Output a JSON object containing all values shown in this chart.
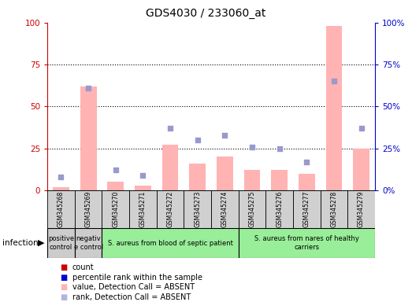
{
  "title": "GDS4030 / 233060_at",
  "samples": [
    "GSM345268",
    "GSM345269",
    "GSM345270",
    "GSM345271",
    "GSM345272",
    "GSM345273",
    "GSM345274",
    "GSM345275",
    "GSM345276",
    "GSM345277",
    "GSM345278",
    "GSM345279"
  ],
  "bar_values_pink": [
    2,
    62,
    5,
    3,
    27,
    16,
    20,
    12,
    12,
    10,
    98,
    25
  ],
  "dot_values_blue": [
    8,
    61,
    12,
    9,
    37,
    30,
    33,
    26,
    25,
    17,
    65,
    37
  ],
  "ylim": [
    0,
    100
  ],
  "yticks": [
    0,
    25,
    50,
    75,
    100
  ],
  "bar_color": "#ffb3b3",
  "dot_color": "#9999cc",
  "left_axis_color": "#cc0000",
  "right_axis_color": "#0000cc",
  "bg_color": "#ffffff",
  "groups": [
    {
      "label": "positive\ncontrol",
      "start": 0,
      "end": 1,
      "color": "#cccccc"
    },
    {
      "label": "negativ\ne control",
      "start": 1,
      "end": 2,
      "color": "#cccccc"
    },
    {
      "label": "S. aureus from blood of septic patient",
      "start": 2,
      "end": 7,
      "color": "#99ee99"
    },
    {
      "label": "S. aureus from nares of healthy\ncarriers",
      "start": 7,
      "end": 12,
      "color": "#99ee99"
    }
  ],
  "infection_label": "infection",
  "legend_items": [
    {
      "color": "#cc0000",
      "label": "count"
    },
    {
      "color": "#0000cc",
      "label": "percentile rank within the sample"
    },
    {
      "color": "#ffb3b3",
      "label": "value, Detection Call = ABSENT"
    },
    {
      "color": "#b3b3dd",
      "label": "rank, Detection Call = ABSENT"
    }
  ]
}
